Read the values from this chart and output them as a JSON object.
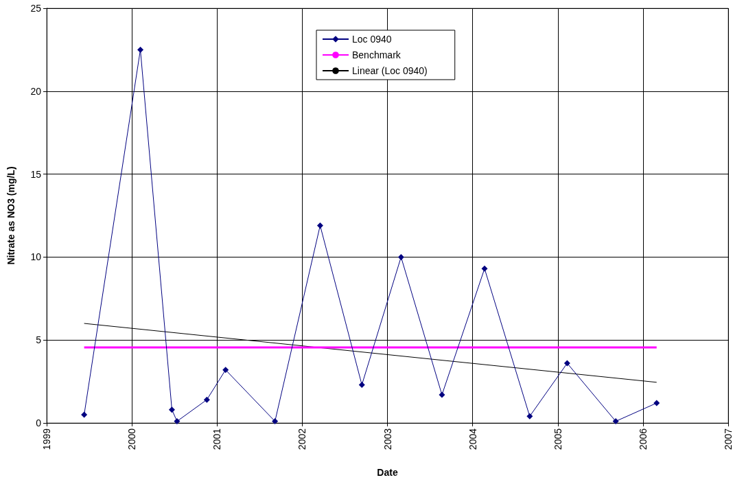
{
  "chart_data": {
    "type": "line",
    "xlabel": "Date",
    "ylabel": "Nitrate as NO3 (mg/L)",
    "xlim": [
      1999,
      2007
    ],
    "xticks": [
      1999,
      2000,
      2001,
      2002,
      2003,
      2004,
      2005,
      2006,
      2007
    ],
    "ylim": [
      0,
      25
    ],
    "yticks": [
      0,
      5,
      10,
      15,
      20,
      25
    ],
    "grid": true,
    "legend": "top",
    "series": [
      {
        "name": "Loc 0940",
        "color": "#000080",
        "marker": "diamond",
        "x": [
          1999.44,
          2000.1,
          2000.47,
          2000.53,
          2000.88,
          2001.1,
          2001.68,
          2002.21,
          2002.7,
          2003.16,
          2003.64,
          2004.14,
          2004.67,
          2005.11,
          2005.68,
          2006.16
        ],
        "values": [
          0.5,
          22.5,
          0.8,
          0.1,
          1.4,
          3.2,
          0.1,
          11.9,
          2.3,
          10.0,
          1.7,
          9.3,
          0.4,
          3.6,
          0.1,
          1.2
        ]
      },
      {
        "name": "Benchmark",
        "color": "#ff00ff",
        "marker": "none",
        "x": [
          1999.44,
          2006.16
        ],
        "values": [
          4.55,
          4.55
        ]
      },
      {
        "name": "Linear (Loc 0940)",
        "color": "#000000",
        "marker": "none",
        "x": [
          1999.44,
          2006.16
        ],
        "values": [
          6.0,
          2.45
        ]
      }
    ]
  }
}
